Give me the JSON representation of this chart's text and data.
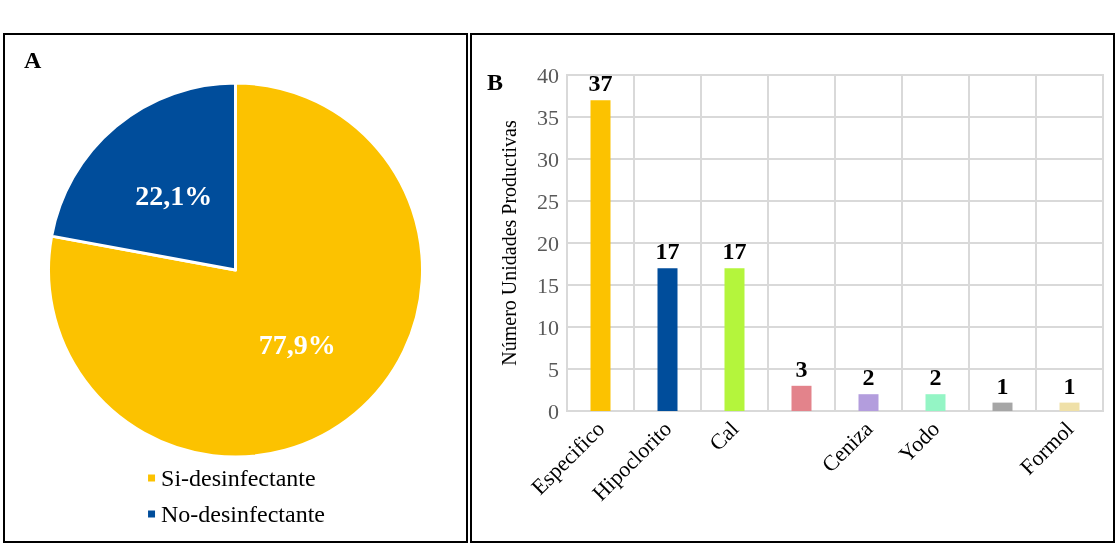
{
  "chart_data": [
    {
      "type": "pie",
      "title": "A",
      "categories": [
        "Si-desinfectante",
        "No-desinfectante"
      ],
      "values": [
        77.9,
        22.1
      ],
      "colors": [
        "#fcc200",
        "#004d9b"
      ],
      "value_labels": [
        "77,9%",
        "22,1%"
      ],
      "legend": "bottom"
    },
    {
      "type": "bar",
      "title": "B",
      "ylabel": "Número Unidades Productivas",
      "categories": [
        "Especifico",
        "Hipoclorito",
        "Cal",
        null,
        "Ceniza",
        "Yodo",
        null,
        "Formol"
      ],
      "values": [
        37,
        17,
        17,
        3,
        2,
        2,
        1,
        1
      ],
      "colors": [
        "#fcc200",
        "#004d9b",
        "#b4f53c",
        "#e3838b",
        "#b39ddd",
        "#94f5c5",
        "#a6a6a6",
        "#efe0a8"
      ],
      "data_labels": true,
      "ylim": [
        0,
        40
      ],
      "yticks": [
        0,
        5,
        10,
        15,
        20,
        25,
        30,
        35,
        40
      ],
      "grid": true
    }
  ]
}
